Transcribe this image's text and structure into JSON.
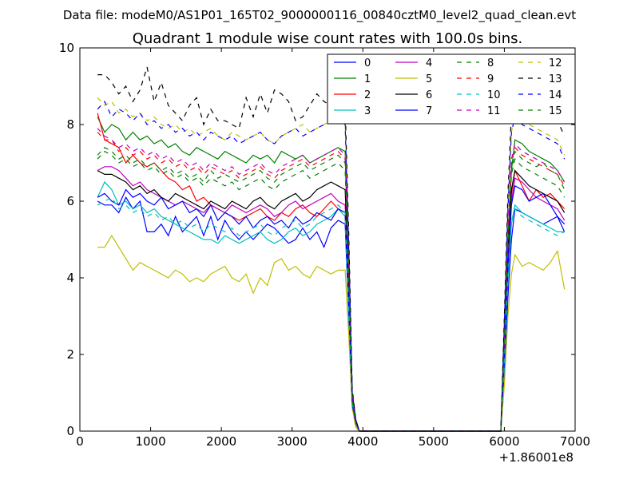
{
  "suptitle": "Data file: modeM0/AS1P01_165T02_9000000116_00840cztM0_level2_quad_clean.evt",
  "chart_data": {
    "type": "line",
    "title": "Quadrant 1 module wise count rates with 100.0s bins.",
    "xlabel": "",
    "ylabel": "",
    "xlim": [
      0,
      7000
    ],
    "ylim": [
      0,
      10
    ],
    "x_offset_label": "+1.86001e8",
    "x_ticks": [
      0,
      1000,
      2000,
      3000,
      4000,
      5000,
      6000,
      7000
    ],
    "y_ticks": [
      0,
      2,
      4,
      6,
      8,
      10
    ],
    "x_tick_labels": [
      "0",
      "1000",
      "2000",
      "3000",
      "4000",
      "5000",
      "6000",
      "7000"
    ],
    "y_tick_labels": [
      "0",
      "2",
      "4",
      "6",
      "8",
      "10"
    ],
    "legend_position": "top-right",
    "legend_columns": 4,
    "x": [
      250,
      350,
      450,
      550,
      650,
      750,
      850,
      950,
      1050,
      1150,
      1250,
      1350,
      1450,
      1550,
      1650,
      1750,
      1850,
      1950,
      2050,
      2150,
      2250,
      2350,
      2450,
      2550,
      2650,
      2750,
      2850,
      2950,
      3050,
      3150,
      3250,
      3350,
      3450,
      3550,
      3650,
      3750,
      3800,
      3850,
      3900,
      3950,
      4000,
      5000,
      5950,
      6000,
      6050,
      6100,
      6150,
      6250,
      6350,
      6450,
      6550,
      6650,
      6750,
      6850
    ],
    "series": [
      {
        "name": "0",
        "color": "#0000ff",
        "dash": "solid",
        "values": [
          6.0,
          5.9,
          5.9,
          5.7,
          6.1,
          5.8,
          6.0,
          5.2,
          5.2,
          5.4,
          5.1,
          5.6,
          5.2,
          5.4,
          5.6,
          5.1,
          5.6,
          5.0,
          5.5,
          5.2,
          5.0,
          5.2,
          5.0,
          5.2,
          5.4,
          5.3,
          5.1,
          4.9,
          5.0,
          5.3,
          5.0,
          5.2,
          4.8,
          5.3,
          5.5,
          5.4,
          3.0,
          0.8,
          0.2,
          0,
          0,
          0,
          0,
          1.5,
          3.5,
          5.0,
          5.8,
          5.7,
          5.6,
          5.5,
          5.4,
          5.5,
          5.6,
          5.2
        ]
      },
      {
        "name": "1",
        "color": "#008000",
        "dash": "solid",
        "values": [
          8.2,
          7.8,
          8.0,
          7.9,
          7.6,
          7.8,
          7.6,
          7.7,
          7.5,
          7.6,
          7.4,
          7.5,
          7.3,
          7.2,
          7.4,
          7.3,
          7.2,
          7.1,
          7.3,
          7.2,
          7.1,
          7.0,
          7.2,
          7.1,
          7.2,
          7.0,
          7.3,
          7.2,
          7.1,
          7.2,
          7.0,
          7.1,
          7.2,
          7.3,
          7.4,
          7.3,
          4.5,
          1.0,
          0.3,
          0,
          0,
          0,
          0,
          2.5,
          5.0,
          6.8,
          7.6,
          7.5,
          7.3,
          7.2,
          7.1,
          7.0,
          6.8,
          6.5
        ]
      },
      {
        "name": "2",
        "color": "#ff0000",
        "dash": "solid",
        "values": [
          8.3,
          7.6,
          7.5,
          7.4,
          7.0,
          7.2,
          7.0,
          6.9,
          7.0,
          6.8,
          6.6,
          6.5,
          6.3,
          6.4,
          6.0,
          6.1,
          5.9,
          5.8,
          5.7,
          5.6,
          5.5,
          5.6,
          5.7,
          5.8,
          5.6,
          5.5,
          5.7,
          5.6,
          5.8,
          5.9,
          5.7,
          5.6,
          5.8,
          6.0,
          5.8,
          5.7,
          3.5,
          0.8,
          0.2,
          0,
          0,
          0,
          0,
          2.0,
          4.5,
          6.2,
          6.8,
          6.4,
          6.0,
          6.3,
          6.1,
          6.2,
          6.0,
          5.8
        ]
      },
      {
        "name": "3",
        "color": "#00bfbf",
        "dash": "solid",
        "values": [
          6.1,
          6.5,
          6.3,
          5.9,
          6.0,
          5.8,
          5.9,
          5.7,
          5.8,
          5.6,
          5.5,
          5.4,
          5.3,
          5.2,
          5.1,
          5.0,
          5.0,
          4.9,
          5.1,
          5.0,
          4.9,
          5.0,
          5.1,
          5.2,
          5.0,
          4.9,
          5.0,
          5.2,
          5.3,
          5.1,
          5.2,
          5.4,
          5.5,
          5.6,
          5.8,
          5.6,
          3.0,
          0.6,
          0.2,
          0,
          0,
          0,
          0,
          1.8,
          4.0,
          5.4,
          5.9,
          5.7,
          5.6,
          5.5,
          5.4,
          5.3,
          5.2,
          5.2
        ]
      },
      {
        "name": "4",
        "color": "#bf00bf",
        "dash": "solid",
        "values": [
          6.8,
          6.9,
          6.9,
          6.8,
          6.6,
          6.4,
          6.5,
          6.3,
          6.2,
          6.1,
          6.0,
          5.9,
          6.0,
          5.9,
          5.8,
          5.7,
          5.9,
          5.8,
          5.7,
          5.9,
          5.8,
          5.7,
          5.8,
          5.9,
          5.8,
          5.6,
          5.7,
          5.9,
          6.0,
          5.8,
          5.9,
          6.0,
          6.1,
          6.2,
          6.0,
          5.9,
          3.5,
          0.7,
          0.2,
          0,
          0,
          0,
          0,
          2.0,
          4.5,
          6.0,
          6.6,
          6.5,
          6.3,
          6.1,
          6.0,
          5.9,
          5.8,
          5.5
        ]
      },
      {
        "name": "5",
        "color": "#bfbf00",
        "dash": "solid",
        "values": [
          4.8,
          4.8,
          5.1,
          4.8,
          4.5,
          4.2,
          4.4,
          4.3,
          4.2,
          4.1,
          4.0,
          4.2,
          4.1,
          3.9,
          4.0,
          3.9,
          4.1,
          4.2,
          4.3,
          4.0,
          3.9,
          4.1,
          3.6,
          4.0,
          3.8,
          4.4,
          4.5,
          4.2,
          4.3,
          4.1,
          4.0,
          4.3,
          4.2,
          4.1,
          4.2,
          4.2,
          2.5,
          0.6,
          0.1,
          0,
          0,
          0,
          0,
          1.2,
          3.0,
          4.1,
          4.6,
          4.3,
          4.4,
          4.3,
          4.2,
          4.4,
          4.7,
          3.7
        ]
      },
      {
        "name": "6",
        "color": "#000000",
        "dash": "solid",
        "values": [
          6.8,
          6.7,
          6.7,
          6.6,
          6.5,
          6.3,
          6.4,
          6.2,
          6.3,
          6.1,
          6.0,
          6.2,
          6.1,
          6.0,
          5.9,
          5.8,
          6.0,
          5.9,
          5.8,
          6.0,
          5.9,
          5.8,
          6.0,
          6.1,
          5.9,
          5.8,
          6.0,
          6.1,
          6.2,
          6.0,
          6.1,
          6.3,
          6.4,
          6.5,
          6.4,
          6.3,
          3.8,
          0.8,
          0.2,
          0,
          0,
          0,
          0,
          2.2,
          4.8,
          6.3,
          6.8,
          6.6,
          6.4,
          6.3,
          6.2,
          6.1,
          6.0,
          5.7
        ]
      },
      {
        "name": "7",
        "color": "#0000ff",
        "dash": "solid",
        "values": [
          6.1,
          6.2,
          6.0,
          5.9,
          6.3,
          6.1,
          6.2,
          6.0,
          5.9,
          6.1,
          5.8,
          5.9,
          6.0,
          5.7,
          5.8,
          5.6,
          5.9,
          5.5,
          5.7,
          5.6,
          5.4,
          5.6,
          5.3,
          5.5,
          5.6,
          5.4,
          5.5,
          5.3,
          5.6,
          5.4,
          5.5,
          5.7,
          5.6,
          5.5,
          5.8,
          5.7,
          3.2,
          0.7,
          0.2,
          0,
          0,
          0,
          0,
          1.9,
          4.2,
          5.9,
          6.4,
          6.3,
          6.0,
          6.1,
          6.2,
          5.9,
          5.6,
          5.4
        ]
      },
      {
        "name": "8",
        "color": "#008000",
        "dash": "dashed",
        "values": [
          7.2,
          7.4,
          7.3,
          7.1,
          7.2,
          7.0,
          7.1,
          6.9,
          7.0,
          6.8,
          6.9,
          6.7,
          6.8,
          6.6,
          6.7,
          6.5,
          6.8,
          6.6,
          6.7,
          6.6,
          6.5,
          6.6,
          6.7,
          6.8,
          6.6,
          6.5,
          6.7,
          6.8,
          6.9,
          7.0,
          6.8,
          6.9,
          7.0,
          7.1,
          7.2,
          7.0,
          4.2,
          0.9,
          0.2,
          0,
          0,
          0,
          0,
          2.4,
          5.0,
          6.8,
          7.3,
          7.1,
          7.0,
          6.9,
          7.0,
          6.8,
          6.7,
          6.3
        ]
      },
      {
        "name": "9",
        "color": "#ff0000",
        "dash": "dashed",
        "values": [
          7.8,
          7.6,
          7.6,
          7.3,
          7.4,
          7.2,
          7.3,
          7.1,
          7.2,
          7.0,
          7.1,
          6.9,
          7.0,
          6.8,
          6.9,
          6.7,
          6.9,
          6.8,
          6.7,
          6.8,
          6.6,
          6.7,
          6.8,
          6.9,
          6.7,
          6.6,
          6.8,
          6.9,
          7.0,
          7.1,
          6.9,
          7.0,
          7.1,
          7.2,
          7.3,
          7.1,
          4.3,
          0.9,
          0.2,
          0,
          0,
          0,
          0,
          2.5,
          5.2,
          7.0,
          7.4,
          7.2,
          7.1,
          7.0,
          6.9,
          6.8,
          6.7,
          6.4
        ]
      },
      {
        "name": "10",
        "color": "#00bfbf",
        "dash": "dashed",
        "values": [
          5.9,
          6.0,
          6.1,
          5.8,
          5.9,
          5.7,
          5.8,
          5.6,
          5.7,
          5.5,
          5.6,
          5.4,
          5.5,
          5.3,
          5.4,
          5.2,
          5.4,
          5.3,
          5.2,
          5.3,
          5.1,
          5.2,
          5.3,
          5.4,
          5.2,
          5.1,
          5.3,
          5.4,
          5.5,
          5.3,
          5.4,
          5.6,
          5.7,
          5.8,
          5.9,
          5.7,
          3.2,
          0.7,
          0.2,
          0,
          0,
          0,
          0,
          1.8,
          4.0,
          5.5,
          5.8,
          5.6,
          5.5,
          5.4,
          5.3,
          5.2,
          5.1,
          5.2
        ]
      },
      {
        "name": "11",
        "color": "#bf00bf",
        "dash": "dashed",
        "values": [
          7.9,
          7.7,
          7.6,
          7.4,
          7.5,
          7.3,
          7.4,
          7.2,
          7.3,
          7.1,
          7.2,
          7.0,
          7.1,
          6.9,
          7.0,
          6.8,
          7.0,
          6.9,
          6.8,
          6.9,
          6.7,
          6.8,
          6.9,
          7.0,
          6.8,
          6.7,
          6.9,
          7.0,
          7.1,
          7.2,
          7.0,
          7.1,
          7.2,
          7.3,
          7.4,
          7.2,
          4.4,
          0.9,
          0.2,
          0,
          0,
          0,
          0,
          2.5,
          5.3,
          7.1,
          7.5,
          7.3,
          7.2,
          7.1,
          7.0,
          6.9,
          6.8,
          6.5
        ]
      },
      {
        "name": "12",
        "color": "#bfbf00",
        "dash": "dashed",
        "values": [
          8.7,
          8.5,
          8.6,
          8.3,
          8.4,
          8.2,
          8.3,
          8.1,
          8.2,
          8.0,
          7.9,
          8.0,
          7.8,
          7.9,
          7.7,
          7.8,
          7.9,
          7.7,
          7.6,
          7.8,
          7.7,
          7.6,
          7.7,
          7.8,
          7.6,
          7.5,
          7.7,
          7.8,
          7.9,
          8.0,
          7.8,
          7.9,
          8.0,
          8.1,
          8.2,
          8.0,
          4.9,
          1.0,
          0.3,
          0,
          0,
          0,
          0,
          2.8,
          5.8,
          7.8,
          8.3,
          8.1,
          8.0,
          7.9,
          7.8,
          7.7,
          7.6,
          7.2
        ]
      },
      {
        "name": "13",
        "color": "#000000",
        "dash": "dashed",
        "values": [
          9.3,
          9.3,
          9.1,
          8.8,
          9.0,
          8.6,
          8.9,
          9.5,
          8.6,
          9.1,
          8.5,
          8.3,
          8.1,
          8.5,
          8.7,
          8.0,
          8.4,
          8.1,
          8.1,
          8.0,
          7.9,
          8.7,
          8.2,
          8.8,
          8.3,
          8.9,
          8.8,
          8.6,
          8.1,
          8.2,
          8.5,
          8.8,
          8.6,
          8.5,
          8.8,
          8.5,
          5.2,
          1.1,
          0.3,
          0,
          0,
          0,
          0,
          3.0,
          6.2,
          8.3,
          8.8,
          8.6,
          8.5,
          8.4,
          8.3,
          8.2,
          8.1,
          7.7
        ]
      },
      {
        "name": "14",
        "color": "#0000ff",
        "dash": "dashed",
        "values": [
          8.4,
          8.6,
          8.2,
          8.4,
          8.3,
          8.1,
          8.3,
          8.0,
          8.1,
          7.9,
          8.0,
          7.8,
          7.9,
          7.7,
          7.8,
          7.6,
          7.8,
          7.7,
          7.6,
          7.7,
          7.5,
          7.6,
          7.7,
          7.8,
          7.6,
          7.5,
          7.7,
          7.8,
          7.9,
          7.7,
          7.8,
          7.9,
          8.0,
          8.1,
          8.2,
          8.0,
          4.8,
          1.0,
          0.3,
          0,
          0,
          0,
          0,
          2.8,
          5.8,
          7.8,
          8.2,
          8.0,
          7.9,
          7.8,
          7.7,
          7.6,
          7.5,
          7.1
        ]
      },
      {
        "name": "15",
        "color": "#008000",
        "dash": "dashed",
        "values": [
          7.1,
          7.3,
          7.2,
          7.0,
          7.1,
          6.9,
          7.0,
          6.8,
          6.9,
          6.7,
          6.8,
          6.6,
          6.7,
          6.5,
          6.6,
          6.4,
          6.6,
          6.5,
          6.4,
          6.5,
          6.3,
          6.4,
          6.5,
          6.6,
          6.4,
          6.3,
          6.5,
          6.6,
          6.7,
          6.8,
          6.6,
          6.7,
          6.8,
          6.9,
          7.0,
          6.8,
          4.1,
          0.8,
          0.2,
          0,
          0,
          0,
          0,
          2.3,
          4.9,
          6.7,
          7.1,
          6.9,
          6.8,
          6.7,
          6.6,
          6.5,
          6.4,
          6.1
        ]
      }
    ]
  }
}
